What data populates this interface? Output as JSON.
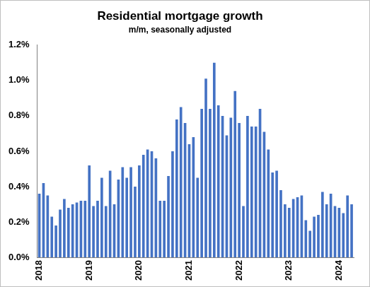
{
  "chart_data": {
    "type": "bar",
    "title": "Residential mortgage growth",
    "subtitle": "m/m, seasonally adjusted",
    "categories": [
      "2018",
      null,
      null,
      null,
      null,
      null,
      null,
      null,
      null,
      null,
      null,
      null,
      "2019",
      null,
      null,
      null,
      null,
      null,
      null,
      null,
      null,
      null,
      null,
      null,
      "2020",
      null,
      null,
      null,
      null,
      null,
      null,
      null,
      null,
      null,
      null,
      null,
      "2021",
      null,
      null,
      null,
      null,
      null,
      null,
      null,
      null,
      null,
      null,
      null,
      "2022",
      null,
      null,
      null,
      null,
      null,
      null,
      null,
      null,
      null,
      null,
      null,
      "2023",
      null,
      null,
      null,
      null,
      null,
      null,
      null,
      null,
      null,
      null,
      null,
      "2024",
      null,
      null,
      null
    ],
    "values": [
      0.36,
      0.42,
      0.35,
      0.23,
      0.18,
      0.27,
      0.33,
      0.28,
      0.3,
      0.31,
      0.32,
      0.32,
      0.52,
      0.29,
      0.32,
      0.45,
      0.29,
      0.49,
      0.3,
      0.44,
      0.51,
      0.45,
      0.51,
      0.4,
      0.52,
      0.58,
      0.61,
      0.6,
      0.56,
      0.32,
      0.32,
      0.46,
      0.6,
      0.78,
      0.85,
      0.76,
      0.64,
      0.68,
      0.45,
      0.84,
      1.01,
      0.84,
      1.1,
      0.86,
      0.8,
      0.69,
      0.79,
      0.94,
      0.76,
      0.29,
      0.8,
      0.74,
      0.74,
      0.84,
      0.71,
      0.61,
      0.48,
      0.49,
      0.38,
      0.3,
      0.28,
      0.33,
      0.34,
      0.35,
      0.21,
      0.15,
      0.23,
      0.24,
      0.37,
      0.3,
      0.36,
      0.29,
      0.28,
      0.25,
      0.35,
      0.3
    ],
    "color": "#4472c4",
    "ylim": [
      0,
      1.2
    ],
    "yticks": [
      {
        "value": 0,
        "label": "0.0%"
      },
      {
        "value": 0.2,
        "label": "0.2%"
      },
      {
        "value": 0.4,
        "label": "0.4%"
      },
      {
        "value": 0.6,
        "label": "0.6%"
      },
      {
        "value": 0.8,
        "label": "0.8%"
      },
      {
        "value": 1.0,
        "label": "1.0%"
      },
      {
        "value": 1.2,
        "label": "1.2%"
      }
    ],
    "grid": false
  }
}
